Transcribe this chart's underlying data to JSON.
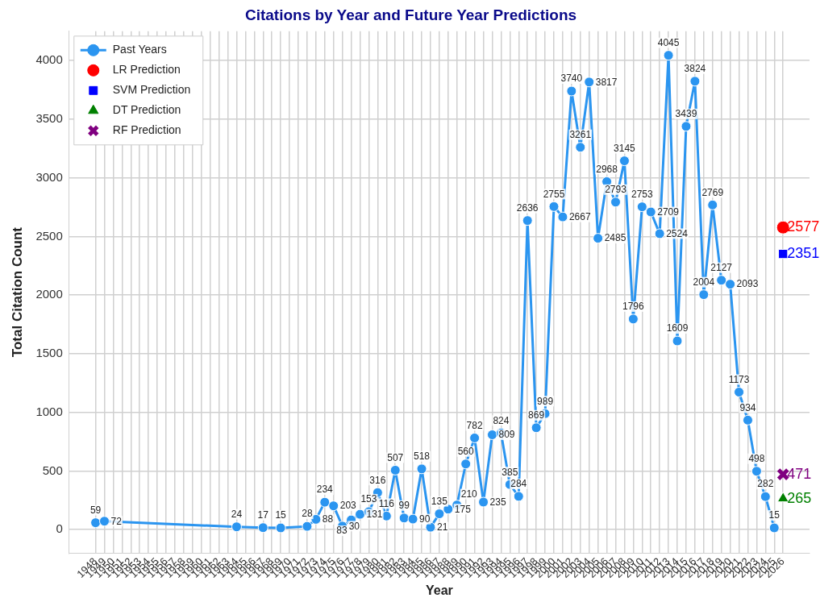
{
  "chart_data": {
    "type": "line",
    "title": "Citations by Year and Future Year Predictions",
    "xlabel": "Year",
    "ylabel": "Total Citation Count",
    "xlim": [
      1945,
      2029
    ],
    "xticks": [
      1948,
      1949,
      1950,
      1951,
      1952,
      1953,
      1954,
      1955,
      1956,
      1957,
      1958,
      1959,
      1960,
      1961,
      1962,
      1963,
      1964,
      1965,
      1966,
      1967,
      1968,
      1969,
      1970,
      1971,
      1972,
      1973,
      1974,
      1975,
      1976,
      1977,
      1978,
      1979,
      1980,
      1981,
      1982,
      1983,
      1984,
      1985,
      1986,
      1987,
      1988,
      1989,
      1990,
      1991,
      1992,
      1993,
      1994,
      1995,
      1996,
      1997,
      1998,
      1999,
      2000,
      2001,
      2002,
      2003,
      2004,
      2005,
      2006,
      2007,
      2008,
      2009,
      2010,
      2011,
      2012,
      2013,
      2014,
      2015,
      2016,
      2017,
      2018,
      2019,
      2020,
      2021,
      2022,
      2023,
      2024,
      2025,
      2026
    ],
    "ylim": [
      -200,
      4250
    ],
    "yticks": [
      0,
      500,
      1000,
      1500,
      2000,
      2500,
      3000,
      3500,
      4000
    ],
    "grid": true,
    "legend": "top left",
    "data_labels": true,
    "series": [
      {
        "name": "Past Years",
        "type": "line",
        "color": "#2b95f0",
        "marker": "circle",
        "line_style": "solid",
        "x": [
          1948,
          1949,
          1964,
          1967,
          1969,
          1972,
          1973,
          1974,
          1975,
          1976,
          1977,
          1978,
          1979,
          1980,
          1981,
          1982,
          1983,
          1984,
          1985,
          1986,
          1987,
          1988,
          1989,
          1990,
          1991,
          1992,
          1993,
          1994,
          1995,
          1996,
          1997,
          1998,
          1999,
          2000,
          2001,
          2002,
          2003,
          2004,
          2005,
          2006,
          2007,
          2008,
          2009,
          2010,
          2011,
          2012,
          2013,
          2014,
          2015,
          2016,
          2017,
          2018,
          2019,
          2020,
          2021,
          2022,
          2023,
          2024,
          2025
        ],
        "values": [
          59,
          72,
          24,
          17,
          15,
          28,
          88,
          234,
          203,
          30,
          83,
          131,
          153,
          316,
          116,
          507,
          99,
          90,
          518,
          21,
          135,
          175,
          210,
          560,
          782,
          235,
          809,
          824,
          385,
          284,
          2636,
          869,
          989,
          2755,
          2667,
          3740,
          3261,
          3817,
          2485,
          2968,
          2793,
          3145,
          1796,
          2753,
          2709,
          2524,
          4045,
          1609,
          3439,
          3824,
          2004,
          2769,
          2127,
          2093,
          1173,
          934,
          498,
          282,
          15
        ]
      },
      {
        "name": "LR Prediction",
        "type": "scatter",
        "color": "#ff0000",
        "marker": "circle",
        "x": [
          2026
        ],
        "values": [
          2577
        ]
      },
      {
        "name": "SVM Prediction",
        "type": "scatter",
        "color": "#0000ff",
        "marker": "square",
        "x": [
          2026
        ],
        "values": [
          2351
        ]
      },
      {
        "name": "DT Prediction",
        "type": "scatter",
        "color": "#008000",
        "marker": "triangle",
        "x": [
          2026
        ],
        "values": [
          265
        ]
      },
      {
        "name": "RF Prediction",
        "type": "scatter",
        "color": "#800080",
        "marker": "cross",
        "x": [
          2026
        ],
        "values": [
          471
        ]
      }
    ]
  }
}
